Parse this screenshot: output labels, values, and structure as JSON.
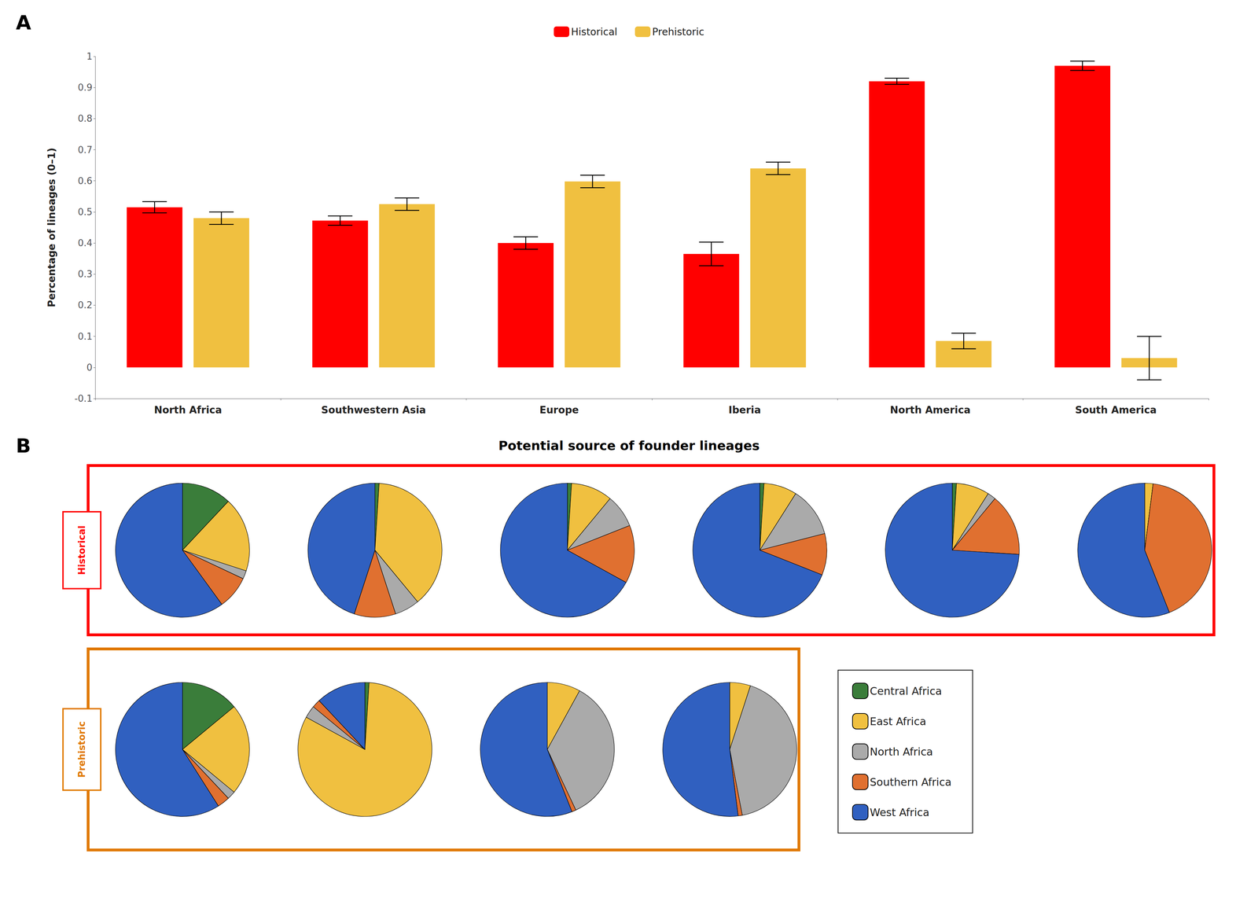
{
  "chart_data": [
    {
      "type": "bar",
      "annotations": [
        "A"
      ],
      "categories": [
        "North Africa",
        "Southwestern Asia",
        "Europe",
        "Iberia",
        "North America",
        "South America"
      ],
      "series": [
        {
          "name": "Historical",
          "color": "#FF0000",
          "values": [
            0.515,
            0.472,
            0.4,
            0.365,
            0.92,
            0.97
          ],
          "errors": [
            0.018,
            0.015,
            0.02,
            0.038,
            0.01,
            0.015
          ]
        },
        {
          "name": "Prehistoric",
          "color": "#F0C040",
          "values": [
            0.48,
            0.525,
            0.598,
            0.64,
            0.085,
            0.03
          ],
          "errors": [
            0.02,
            0.02,
            0.02,
            0.02,
            0.025,
            0.07
          ]
        }
      ],
      "ylabel": "Percentage of lineages (0–1)",
      "ylim": [
        -0.1,
        1.0
      ],
      "yticks": [
        -0.1,
        0,
        0.1,
        0.2,
        0.3,
        0.4,
        0.5,
        0.6,
        0.7,
        0.8,
        0.9,
        1
      ],
      "grid": false,
      "legend": "top"
    },
    {
      "type": "pie",
      "title": "Potential source of founder lineages",
      "annotations": [
        "B"
      ],
      "categories": [
        "Central Africa",
        "East Africa",
        "North Africa",
        "Southern Africa",
        "West Africa"
      ],
      "colors": [
        "#3A7D3A",
        "#F0C040",
        "#AAAAAA",
        "#E07030",
        "#3060C0"
      ],
      "series": [
        {
          "name": "Historical",
          "color": "#FF0000",
          "values": [
            [
              0.12,
              0.18,
              0.02,
              0.08,
              0.6
            ],
            [
              0.01,
              0.38,
              0.06,
              0.1,
              0.45
            ],
            [
              0.01,
              0.1,
              0.08,
              0.14,
              0.67
            ],
            [
              0.01,
              0.08,
              0.12,
              0.1,
              0.69
            ],
            [
              0.01,
              0.08,
              0.02,
              0.15,
              0.74
            ],
            [
              0.0,
              0.02,
              0.0,
              0.42,
              0.56
            ]
          ]
        },
        {
          "name": "Prehistoric",
          "color": "#E07800",
          "values": [
            [
              0.14,
              0.22,
              0.02,
              0.03,
              0.59
            ],
            [
              0.01,
              0.82,
              0.03,
              0.02,
              0.12
            ],
            [
              0.0,
              0.08,
              0.35,
              0.01,
              0.56
            ],
            [
              0.0,
              0.05,
              0.42,
              0.01,
              0.52
            ]
          ]
        }
      ],
      "legend": "right"
    }
  ]
}
